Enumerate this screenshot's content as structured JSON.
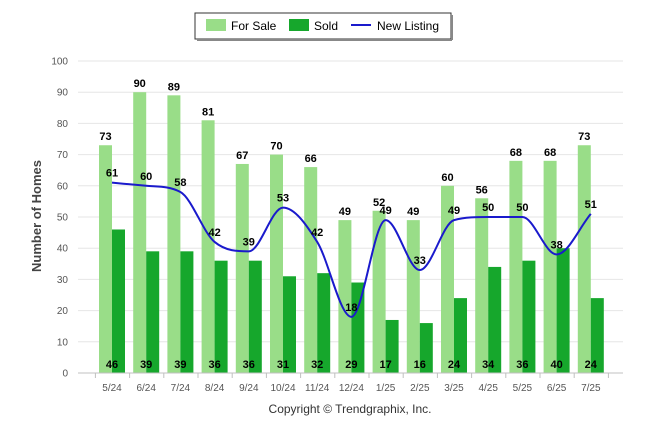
{
  "chart_data": {
    "type": "bar",
    "categories": [
      "5/24",
      "6/24",
      "7/24",
      "8/24",
      "9/24",
      "10/24",
      "11/24",
      "12/24",
      "1/25",
      "2/25",
      "3/25",
      "4/25",
      "5/25",
      "6/25",
      "7/25"
    ],
    "series": [
      {
        "name": "For Sale",
        "type": "bar",
        "color": "#99dd88",
        "values": [
          73,
          90,
          89,
          81,
          67,
          70,
          66,
          49,
          52,
          49,
          60,
          56,
          68,
          68,
          73
        ]
      },
      {
        "name": "Sold",
        "type": "bar",
        "color": "#16a72c",
        "values": [
          46,
          39,
          39,
          36,
          36,
          31,
          32,
          29,
          17,
          16,
          24,
          34,
          36,
          40,
          24
        ]
      },
      {
        "name": "New Listing",
        "type": "line",
        "color": "#1a1acc",
        "values": [
          61,
          60,
          58,
          42,
          39,
          53,
          42,
          18,
          49,
          33,
          49,
          50,
          50,
          38,
          51
        ]
      }
    ],
    "ylabel": "Number of Homes",
    "xlabel": "",
    "ylim": [
      0,
      100
    ],
    "yticks": [
      0,
      10,
      20,
      30,
      40,
      50,
      60,
      70,
      80,
      90,
      100
    ],
    "grid": true,
    "legend_position": "top-center"
  },
  "credit": "Copyright © Trendgraphix, Inc."
}
